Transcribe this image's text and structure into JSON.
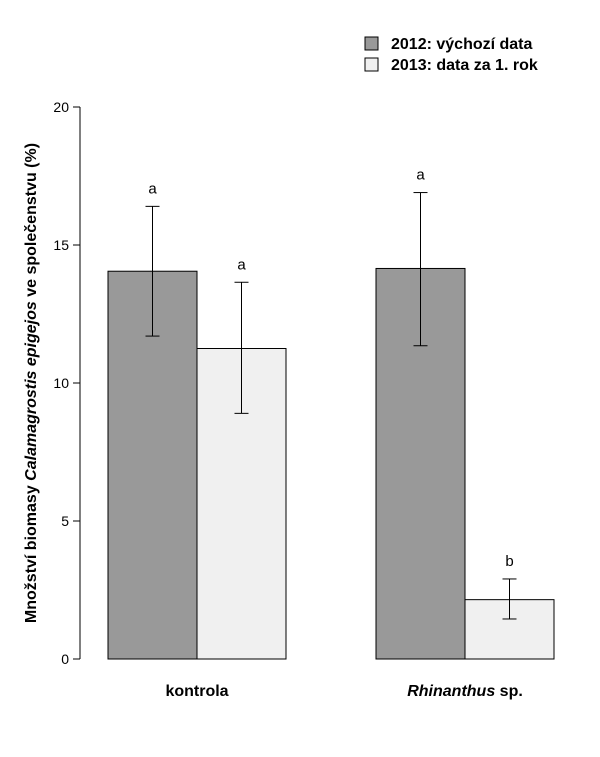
{
  "chart_data": {
    "type": "bar",
    "categories": [
      {
        "parts": [
          {
            "text": "kontrola",
            "italic": false
          }
        ]
      },
      {
        "parts": [
          {
            "text": "Rhinanthus",
            "italic": true
          },
          {
            "text": " sp.",
            "italic": false
          }
        ]
      }
    ],
    "series": [
      {
        "name": "2012: výchozí data",
        "color": "#999999",
        "values": [
          14.05,
          14.15
        ],
        "error_low": [
          11.7,
          11.35
        ],
        "error_high": [
          16.4,
          16.9
        ],
        "labels": [
          "a",
          "a"
        ]
      },
      {
        "name": "2013: data za 1. rok",
        "color": "#f0f0f0",
        "values": [
          11.25,
          2.15
        ],
        "error_low": [
          8.9,
          1.45
        ],
        "error_high": [
          13.65,
          2.9
        ],
        "labels": [
          "a",
          "b"
        ]
      }
    ],
    "ylabel_parts": [
      {
        "text": "Množství biomasy ",
        "italic": false
      },
      {
        "text": "Calamagrostis epigejos",
        "italic": true
      },
      {
        "text": " ve společenstvu (%)",
        "italic": false
      }
    ],
    "ylim": [
      0,
      20
    ],
    "yticks": [
      0,
      5,
      10,
      15,
      20
    ],
    "legend_position": "top-right",
    "grid": false
  }
}
